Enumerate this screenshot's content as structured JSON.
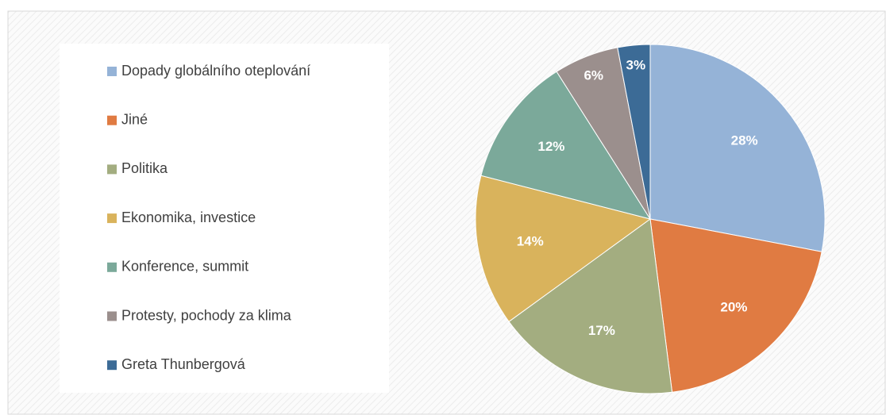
{
  "chart_data": {
    "type": "pie",
    "categories": [
      "Dopady globálního oteplování",
      "Jiné",
      "Politika",
      "Ekonomika, investice",
      "Konference, summit",
      "Protesty, pochody za klima",
      "Greta Thunbergová"
    ],
    "values": [
      28,
      20,
      17,
      14,
      12,
      6,
      3
    ],
    "value_labels": [
      "28%",
      "20%",
      "17%",
      "14%",
      "12%",
      "6%",
      "3%"
    ],
    "colors": [
      "#95b3d7",
      "#e07b42",
      "#a3ad80",
      "#d9b35c",
      "#7ba99a",
      "#9b8f8d",
      "#3c6b96"
    ],
    "legend": "left"
  }
}
